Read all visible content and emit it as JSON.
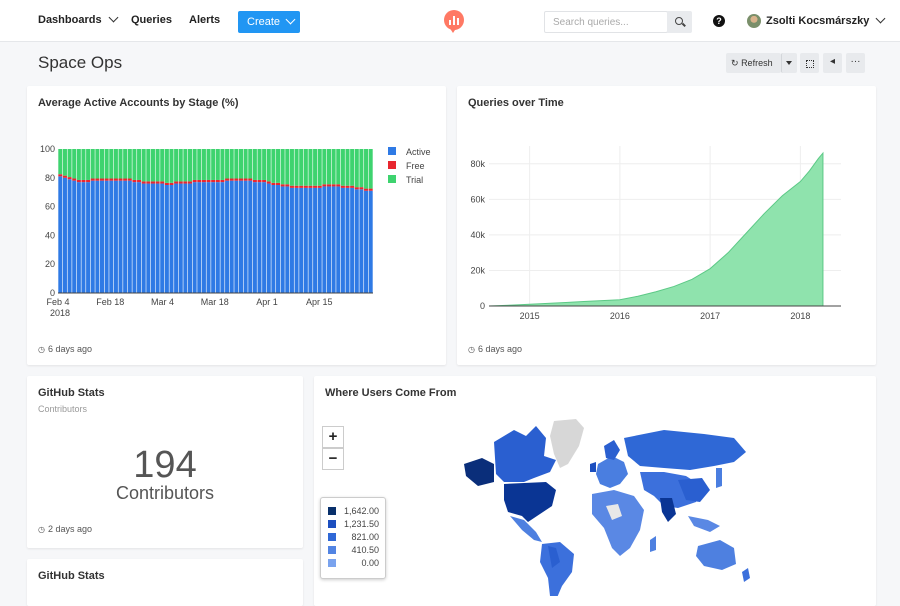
{
  "nav": {
    "dashboards": "Dashboards",
    "queries": "Queries",
    "alerts": "Alerts",
    "create": "Create",
    "search_placeholder": "Search queries...",
    "user_name": "Zsolti Kocsmárszky",
    "help": "?"
  },
  "dashboard": {
    "title": "Space Ops",
    "refresh_label": "Refresh",
    "more_label": "···"
  },
  "widgets": {
    "active_accounts": {
      "title": "Average Active Accounts by Stage (%)",
      "updated": "6 days ago"
    },
    "queries_time": {
      "title": "Queries over Time",
      "updated": "6 days ago"
    },
    "github_stats": {
      "title": "GitHub Stats",
      "subtitle": "Contributors",
      "value": "194",
      "value_label": "Contributors",
      "updated": "2 days ago"
    },
    "github_stats_2": {
      "title": "GitHub Stats"
    },
    "users_map": {
      "title": "Where Users Come From",
      "zoom_in": "+",
      "zoom_out": "−"
    }
  },
  "colors": {
    "active": "#2f7ae5",
    "free": "#e8262f",
    "trial": "#3ed36f",
    "accent": "#2196f3"
  },
  "chart_data": [
    {
      "type": "bar",
      "title": "Average Active Accounts by Stage (%)",
      "stacked": true,
      "x_ticks": [
        "Feb 4",
        "Feb 18",
        "Mar 4",
        "Mar 18",
        "Apr 1",
        "Apr 15"
      ],
      "x_tick_year": "2018",
      "y_ticks": [
        "0",
        "20",
        "40",
        "60",
        "80",
        "100"
      ],
      "ylim": [
        0,
        100
      ],
      "legend_position": "right",
      "series": [
        {
          "name": "Active",
          "color": "#2f7ae5",
          "values": [
            81,
            80,
            79,
            78,
            77,
            77,
            77,
            78,
            78,
            78,
            78,
            78,
            78,
            78,
            78,
            78,
            77,
            77,
            76,
            76,
            76,
            76,
            76,
            75,
            75,
            76,
            76,
            76,
            76,
            77,
            77,
            77,
            77,
            77,
            77,
            77,
            78,
            78,
            78,
            78,
            78,
            78,
            77,
            77,
            77,
            76,
            75,
            75,
            74,
            74,
            73,
            73,
            73,
            73,
            73,
            73,
            73,
            74,
            74,
            74,
            74,
            73,
            73,
            73,
            72,
            72,
            71,
            71
          ]
        },
        {
          "name": "Free",
          "color": "#e8262f",
          "values": [
            1.5,
            1.5,
            1.5,
            1.5,
            1.5,
            1.5,
            1.5,
            1.5,
            1.5,
            1.5,
            1.5,
            1.5,
            1.5,
            1.5,
            1.5,
            1.5,
            1.5,
            1.5,
            1.5,
            1.5,
            1.5,
            1.5,
            1.5,
            1.5,
            1.5,
            1.5,
            1.5,
            1.5,
            1.5,
            1.5,
            1.5,
            1.5,
            1.5,
            1.5,
            1.5,
            1.5,
            1.5,
            1.5,
            1.5,
            1.5,
            1.5,
            1.5,
            1.5,
            1.5,
            1.5,
            1.5,
            1.5,
            1.5,
            1.5,
            1.5,
            1.5,
            1.5,
            1.5,
            1.5,
            1.5,
            1.5,
            1.5,
            1.5,
            1.5,
            1.5,
            1.5,
            1.5,
            1.5,
            1.5,
            1.5,
            1.5,
            1.5,
            1.5
          ]
        },
        {
          "name": "Trial",
          "color": "#3ed36f",
          "values": [
            17.5,
            18.5,
            19.5,
            20.5,
            21.5,
            21.5,
            21.5,
            20.5,
            20.5,
            20.5,
            20.5,
            20.5,
            20.5,
            20.5,
            20.5,
            20.5,
            21.5,
            21.5,
            22.5,
            22.5,
            22.5,
            22.5,
            22.5,
            23.5,
            23.5,
            22.5,
            22.5,
            22.5,
            22.5,
            21.5,
            21.5,
            21.5,
            21.5,
            21.5,
            21.5,
            21.5,
            20.5,
            20.5,
            20.5,
            20.5,
            20.5,
            20.5,
            21.5,
            21.5,
            21.5,
            22.5,
            23.5,
            23.5,
            24.5,
            24.5,
            25.5,
            25.5,
            25.5,
            25.5,
            25.5,
            25.5,
            25.5,
            24.5,
            24.5,
            24.5,
            24.5,
            25.5,
            25.5,
            25.5,
            26.5,
            26.5,
            27.5,
            27.5
          ]
        }
      ]
    },
    {
      "type": "area",
      "title": "Queries over Time",
      "x_ticks": [
        "2015",
        "2016",
        "2017",
        "2018"
      ],
      "y_ticks": [
        "0",
        "20k",
        "40k",
        "60k",
        "80k"
      ],
      "ylim": [
        0,
        90000
      ],
      "xlim": [
        2014.55,
        2018.45
      ],
      "series": [
        {
          "name": "Queries",
          "color": "#8fe3ad",
          "x": [
            2014.55,
            2014.8,
            2015.0,
            2015.2,
            2015.4,
            2015.6,
            2015.8,
            2016.0,
            2016.2,
            2016.4,
            2016.6,
            2016.8,
            2017.0,
            2017.2,
            2017.4,
            2017.6,
            2017.8,
            2018.0,
            2018.1,
            2018.2,
            2018.25
          ],
          "values": [
            0,
            500,
            1000,
            1500,
            2000,
            2500,
            3000,
            3500,
            5500,
            8000,
            11000,
            15000,
            21000,
            30000,
            41000,
            52000,
            62000,
            70000,
            76000,
            83000,
            86000
          ]
        }
      ]
    },
    {
      "type": "heatmap",
      "title": "Where Users Come From",
      "legend": [
        "1,642.00",
        "1,231.50",
        "821.00",
        "410.50",
        "0.00"
      ],
      "legend_colors": [
        "#08306b",
        "#1c4fbf",
        "#2f68d6",
        "#5284e3",
        "#7aa3ee"
      ]
    }
  ]
}
